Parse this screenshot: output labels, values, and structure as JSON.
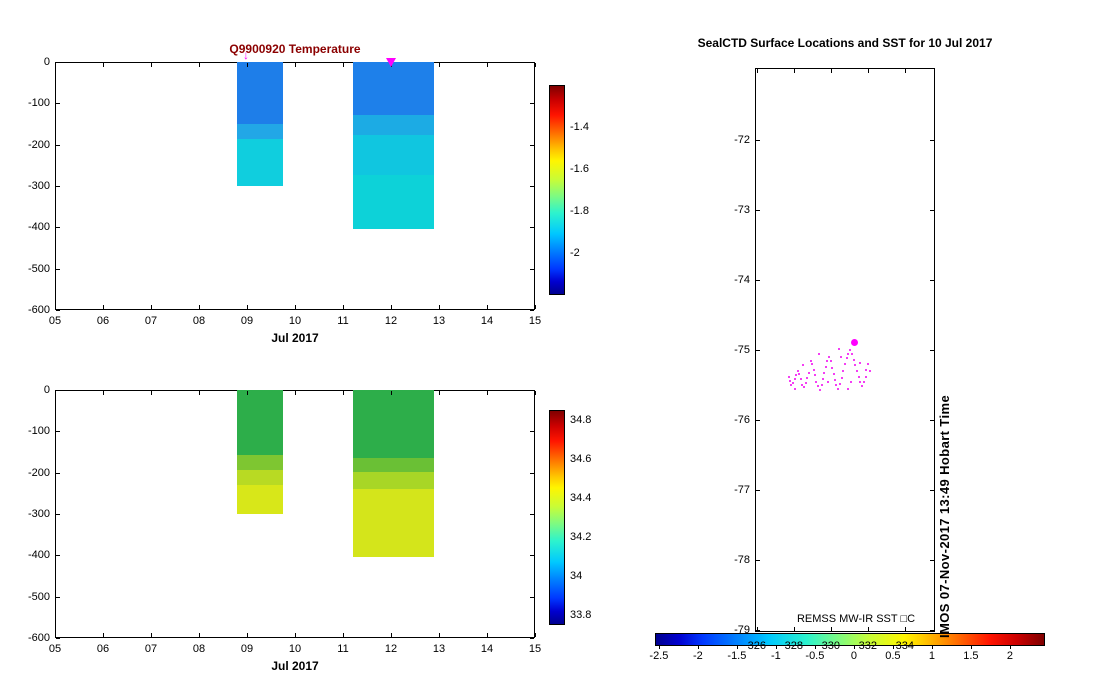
{
  "figure": {
    "background": "#ffffff",
    "accent_magenta": "#ff00ff"
  },
  "chart_data": [
    {
      "id": "temperature_profile",
      "type": "heatmap",
      "title": "Q9900920  Temperature",
      "title_color": "#8b0000",
      "xlabel": "Jul 2017",
      "x_domain": [
        5,
        15
      ],
      "x_ticks": [
        5,
        6,
        7,
        8,
        9,
        10,
        11,
        12,
        13,
        14,
        15
      ],
      "x_tick_labels": [
        "05",
        "06",
        "07",
        "08",
        "09",
        "10",
        "11",
        "12",
        "13",
        "14",
        "15"
      ],
      "y_domain": [
        0,
        -600
      ],
      "y_ticks": [
        0,
        -100,
        -200,
        -300,
        -400,
        -500,
        -600
      ],
      "y_tick_labels": [
        "0",
        "-100",
        "-200",
        "-300",
        "-400",
        "-500",
        "-600"
      ],
      "colorbar": {
        "orientation": "vertical",
        "colormap": "jet",
        "range_top": -1.2,
        "range_bottom": -2.2,
        "ticks": [
          -1.4,
          -1.6,
          -1.8,
          -2
        ],
        "tick_labels": [
          "-1.4",
          "-1.6",
          "-1.8",
          "-2"
        ]
      },
      "profiles": [
        {
          "day_start": 8.8,
          "day_end": 9.75,
          "max_depth_m": -300,
          "bands": [
            {
              "from_depth": 0,
              "to_depth": -150,
              "value": -1.98,
              "color": "#1e7ee9"
            },
            {
              "from_depth": -150,
              "to_depth": -185,
              "value": -1.9,
              "color": "#22a7e6"
            },
            {
              "from_depth": -185,
              "to_depth": -300,
              "value": -1.84,
              "color": "#10cede"
            }
          ]
        },
        {
          "day_start": 11.2,
          "day_end": 12.9,
          "max_depth_m": -405,
          "bands": [
            {
              "from_depth": 0,
              "to_depth": -128,
              "value": -1.98,
              "color": "#1e80ea"
            },
            {
              "from_depth": -128,
              "to_depth": -177,
              "value": -1.9,
              "color": "#1cabe4"
            },
            {
              "from_depth": -177,
              "to_depth": -273,
              "value": -1.84,
              "color": "#10c6e0"
            },
            {
              "from_depth": -273,
              "to_depth": -405,
              "value": -1.82,
              "color": "#0dd2d8"
            }
          ]
        }
      ],
      "markers": [
        {
          "day": 9.0,
          "shape": "arrow-down",
          "color": "#ff00ff"
        },
        {
          "day": 12.0,
          "shape": "triangle-down",
          "color": "#ff00ff"
        }
      ]
    },
    {
      "id": "salinity_profile",
      "type": "heatmap",
      "title": "",
      "xlabel": "Jul 2017",
      "x_domain": [
        5,
        15
      ],
      "x_ticks": [
        5,
        6,
        7,
        8,
        9,
        10,
        11,
        12,
        13,
        14,
        15
      ],
      "x_tick_labels": [
        "05",
        "06",
        "07",
        "08",
        "09",
        "10",
        "11",
        "12",
        "13",
        "14",
        "15"
      ],
      "y_domain": [
        0,
        -600
      ],
      "y_ticks": [
        0,
        -100,
        -200,
        -300,
        -400,
        -500,
        -600
      ],
      "y_tick_labels": [
        "0",
        "-100",
        "-200",
        "-300",
        "-400",
        "-500",
        "-600"
      ],
      "colorbar": {
        "orientation": "vertical",
        "colormap": "jet",
        "range_top": 34.85,
        "range_bottom": 33.75,
        "ticks": [
          34.8,
          34.6,
          34.4,
          34.2,
          34,
          33.8
        ],
        "tick_labels": [
          "34.8",
          "34.6",
          "34.4",
          "34.2",
          "34",
          "33.8"
        ]
      },
      "profiles": [
        {
          "day_start": 8.8,
          "day_end": 9.75,
          "max_depth_m": -300,
          "bands": [
            {
              "from_depth": 0,
              "to_depth": -157,
              "value": 34.3,
              "color": "#2dae4a"
            },
            {
              "from_depth": -157,
              "to_depth": -193,
              "value": 34.38,
              "color": "#7ec631"
            },
            {
              "from_depth": -193,
              "to_depth": -230,
              "value": 34.43,
              "color": "#b8da23"
            },
            {
              "from_depth": -230,
              "to_depth": -300,
              "value": 34.47,
              "color": "#d8e719"
            }
          ]
        },
        {
          "day_start": 11.2,
          "day_end": 12.9,
          "max_depth_m": -405,
          "bands": [
            {
              "from_depth": 0,
              "to_depth": -164,
              "value": 34.3,
              "color": "#2dae4a"
            },
            {
              "from_depth": -164,
              "to_depth": -198,
              "value": 34.36,
              "color": "#6ac035"
            },
            {
              "from_depth": -198,
              "to_depth": -240,
              "value": 34.42,
              "color": "#a8d626"
            },
            {
              "from_depth": -240,
              "to_depth": -405,
              "value": 34.47,
              "color": "#d4e51b"
            }
          ]
        }
      ],
      "markers": []
    },
    {
      "id": "sst_map",
      "type": "scatter",
      "title": "SealCTD Surface Locations and SST for 10 Jul 2017",
      "x_domain": [
        325.9,
        335.63
      ],
      "x_ticks": [
        326,
        328,
        330,
        332,
        334
      ],
      "x_tick_labels": [
        "326",
        "328",
        "330",
        "332",
        "334"
      ],
      "y_domain": [
        -70.97,
        -79.03
      ],
      "y_ticks": [
        -72,
        -73,
        -74,
        -75,
        -76,
        -77,
        -78,
        -79
      ],
      "y_tick_labels": [
        "-72",
        "-73",
        "-74",
        "-75",
        "-76",
        "-77",
        "-78",
        "-79"
      ],
      "point_color": "#f000f0",
      "highlight_color": "#ff00ff",
      "highlight_point": [
        331.3,
        -74.89
      ],
      "points": [
        [
          327.72,
          -75.38
        ],
        [
          327.78,
          -75.44
        ],
        [
          327.85,
          -75.5
        ],
        [
          327.95,
          -75.47
        ],
        [
          328.05,
          -75.41
        ],
        [
          328.12,
          -75.35
        ],
        [
          328.2,
          -75.3
        ],
        [
          328.3,
          -75.34
        ],
        [
          328.38,
          -75.42
        ],
        [
          328.45,
          -75.5
        ],
        [
          328.55,
          -75.53
        ],
        [
          328.65,
          -75.47
        ],
        [
          328.72,
          -75.4
        ],
        [
          328.8,
          -75.33
        ],
        [
          329.0,
          -75.2
        ],
        [
          329.08,
          -75.28
        ],
        [
          329.15,
          -75.36
        ],
        [
          329.22,
          -75.45
        ],
        [
          329.3,
          -75.52
        ],
        [
          329.4,
          -75.57
        ],
        [
          329.5,
          -75.5
        ],
        [
          329.58,
          -75.42
        ],
        [
          329.65,
          -75.33
        ],
        [
          329.72,
          -75.24
        ],
        [
          329.8,
          -75.15
        ],
        [
          329.9,
          -75.1
        ],
        [
          330.0,
          -75.16
        ],
        [
          330.08,
          -75.25
        ],
        [
          330.15,
          -75.34
        ],
        [
          330.2,
          -75.43
        ],
        [
          330.3,
          -75.5
        ],
        [
          330.4,
          -75.55
        ],
        [
          330.5,
          -75.48
        ],
        [
          330.6,
          -75.4
        ],
        [
          330.68,
          -75.3
        ],
        [
          330.75,
          -75.2
        ],
        [
          330.85,
          -75.12
        ],
        [
          330.95,
          -75.05
        ],
        [
          331.05,
          -75.0
        ],
        [
          331.15,
          -75.06
        ],
        [
          331.25,
          -75.14
        ],
        [
          331.32,
          -75.22
        ],
        [
          331.4,
          -75.3
        ],
        [
          331.5,
          -75.38
        ],
        [
          331.6,
          -75.45
        ],
        [
          331.7,
          -75.52
        ],
        [
          331.8,
          -75.46
        ],
        [
          331.88,
          -75.38
        ],
        [
          331.92,
          -75.28
        ],
        [
          332.0,
          -75.2
        ],
        [
          332.1,
          -75.3
        ],
        [
          328.9,
          -75.15
        ],
        [
          329.35,
          -75.05
        ],
        [
          330.45,
          -74.98
        ],
        [
          331.1,
          -75.45
        ],
        [
          330.9,
          -75.55
        ],
        [
          328.5,
          -75.22
        ],
        [
          329.85,
          -75.45
        ],
        [
          330.55,
          -75.1
        ],
        [
          331.55,
          -75.18
        ],
        [
          328.05,
          -75.55
        ]
      ],
      "annotation": "REMSS MW-IR SST □C",
      "side_note": "IMOS 07-Nov-2017 13:49 Hobart Time",
      "colorbar": {
        "orientation": "horizontal",
        "colormap": "jet",
        "range_left": -2.55,
        "range_right": 2.45,
        "ticks": [
          -2.5,
          -2,
          -1.5,
          -1,
          -0.5,
          0,
          0.5,
          1,
          1.5,
          2
        ],
        "tick_labels": [
          "-2.5",
          "-2",
          "-1.5",
          "-1",
          "-0.5",
          "0",
          "0.5",
          "1",
          "1.5",
          "2"
        ]
      }
    }
  ]
}
